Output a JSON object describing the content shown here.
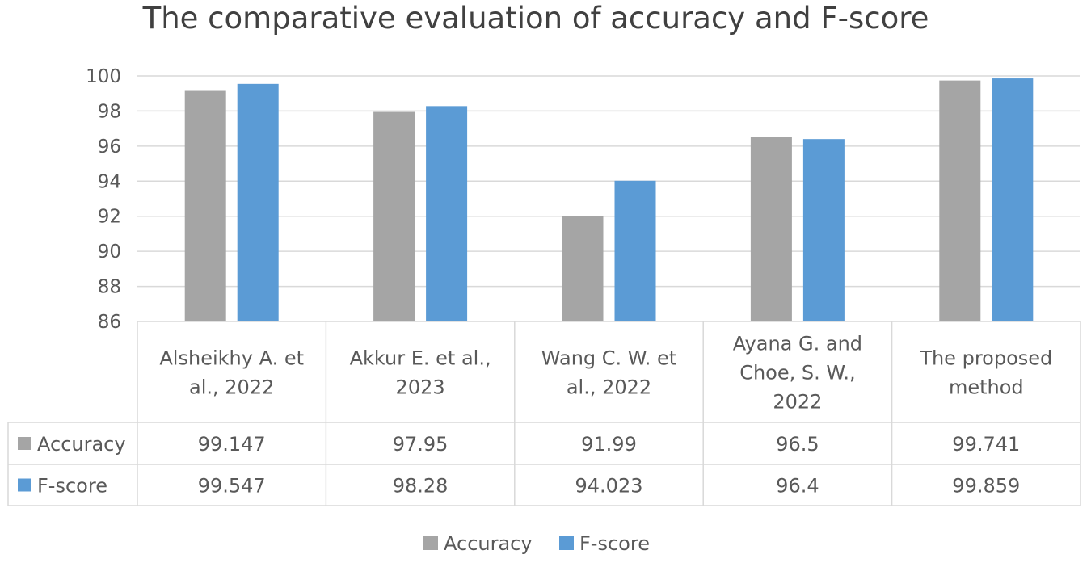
{
  "chart_data": {
    "type": "bar",
    "title": "The comparative evaluation of accuracy and F-score",
    "categories": [
      [
        "Alsheikhy A. et",
        "al., 2022"
      ],
      [
        "Akkur E. et al.,",
        "2023"
      ],
      [
        "Wang C. W. et",
        "al., 2022"
      ],
      [
        "Ayana G. and",
        "Choe, S. W.,",
        "2022"
      ],
      [
        "The proposed",
        "method"
      ]
    ],
    "series": [
      {
        "name": "Accuracy",
        "color": "#a5a5a5",
        "values": [
          99.147,
          97.95,
          91.99,
          96.5,
          99.741
        ],
        "labels": [
          "99.147",
          "97.95",
          "91.99",
          "96.5",
          "99.741"
        ]
      },
      {
        "name": "F-score",
        "color": "#5b9bd5",
        "values": [
          99.547,
          98.28,
          94.023,
          96.4,
          99.859
        ],
        "labels": [
          "99.547",
          "98.28",
          "94.023",
          "96.4",
          "99.859"
        ]
      }
    ],
    "ylim": [
      86,
      100
    ],
    "yticks": [
      86,
      88,
      90,
      92,
      94,
      96,
      98,
      100
    ],
    "grid": true,
    "data_table": true,
    "legend_position": "bottom"
  }
}
